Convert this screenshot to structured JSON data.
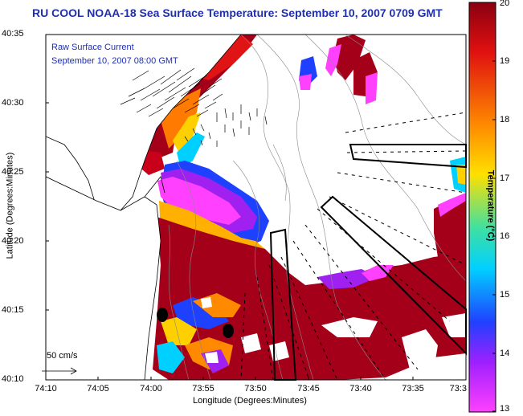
{
  "title": "RU COOL  NOAA-18  Sea Surface Temperature:  September 10, 2007 0709 GMT",
  "legend": {
    "line1": "Raw Surface Current",
    "line2": "September 10, 2007 08:00 GMT"
  },
  "axes": {
    "xlabel": "Longitude (Degrees:Minutes)",
    "ylabel": "Latitude (Degrees:Minutes)",
    "xticks": [
      "74:10",
      "74:05",
      "74:00",
      "73:55",
      "73:50",
      "73:45",
      "73:40",
      "73:35",
      "73:3"
    ],
    "yticks": [
      "40:35",
      "40:30",
      "40:25",
      "40:20",
      "40:15",
      "40:10"
    ]
  },
  "colorbar": {
    "label": "Temperature (°C)",
    "ticks": [
      "20",
      "19",
      "18",
      "17",
      "16",
      "15",
      "14",
      "13"
    ],
    "min": 13,
    "max": 20
  },
  "scale": {
    "label": "50 cm/s"
  },
  "colors": {
    "title": "#1f2fb0",
    "warm": "#a0001a",
    "land": "#ffffff"
  }
}
